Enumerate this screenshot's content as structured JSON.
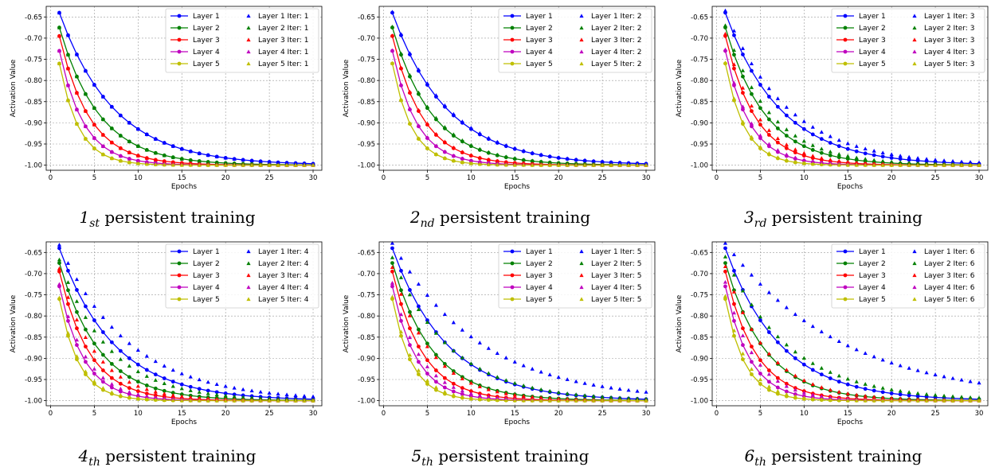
{
  "figure": {
    "layer_names": [
      "Layer 1",
      "Layer 2",
      "Layer 3",
      "Layer 4",
      "Layer 5"
    ],
    "layer_colors": [
      "#0000ff",
      "#008000",
      "#ff0000",
      "#bf00bf",
      "#bfbf00"
    ],
    "xlabel": "Epochs",
    "ylabel": "Activation Value",
    "xticks": [
      0,
      5,
      10,
      15,
      20,
      25,
      30
    ],
    "yticks": [
      -0.65,
      -0.7,
      -0.75,
      -0.8,
      -0.85,
      -0.9,
      -0.95,
      -1.0
    ],
    "xlim": [
      -0.5,
      31
    ],
    "ylim": [
      -1.012,
      -0.625
    ],
    "grid": true,
    "legend_position": "top-right"
  },
  "chart_data": [
    {
      "type": "line",
      "caption": {
        "ordinal": "1",
        "suffix": "st",
        "text": "persistent training"
      },
      "legend_labels": [
        "Layer 1",
        "Layer 2",
        "Layer 3",
        "Layer 4",
        "Layer 5",
        "Layer 1 Iter: 1",
        "Layer 2 Iter: 1",
        "Layer 3 Iter: 1",
        "Layer 4 Iter: 1",
        "Layer 5 Iter: 1"
      ],
      "x": [
        1,
        30
      ],
      "series": [
        {
          "name": "Layer 1",
          "start": -0.64,
          "rate": 0.16
        },
        {
          "name": "Layer 2",
          "start": -0.675,
          "rate": 0.22
        },
        {
          "name": "Layer 3",
          "start": -0.695,
          "rate": 0.29
        },
        {
          "name": "Layer 4",
          "start": -0.73,
          "rate": 0.36
        },
        {
          "name": "Layer 5",
          "start": -0.76,
          "rate": 0.45
        }
      ],
      "iter_series": [
        {
          "name": "Layer 1 Iter: 1",
          "start": -0.64,
          "rate": 0.16
        },
        {
          "name": "Layer 2 Iter: 1",
          "start": -0.675,
          "rate": 0.22
        },
        {
          "name": "Layer 3 Iter: 1",
          "start": -0.695,
          "rate": 0.29
        },
        {
          "name": "Layer 4 Iter: 1",
          "start": -0.73,
          "rate": 0.36
        },
        {
          "name": "Layer 5 Iter: 1",
          "start": -0.76,
          "rate": 0.45
        }
      ]
    },
    {
      "type": "line",
      "caption": {
        "ordinal": "2",
        "suffix": "nd",
        "text": "persistent training"
      },
      "legend_labels": [
        "Layer 1",
        "Layer 2",
        "Layer 3",
        "Layer 4",
        "Layer 5",
        "Layer 1 Iter: 2",
        "Layer 2 Iter: 2",
        "Layer 3 Iter: 2",
        "Layer 4 Iter: 2",
        "Layer 5 Iter: 2"
      ],
      "x": [
        1,
        30
      ],
      "series": [
        {
          "name": "Layer 1",
          "start": -0.64,
          "rate": 0.16
        },
        {
          "name": "Layer 2",
          "start": -0.675,
          "rate": 0.22
        },
        {
          "name": "Layer 3",
          "start": -0.695,
          "rate": 0.29
        },
        {
          "name": "Layer 4",
          "start": -0.73,
          "rate": 0.36
        },
        {
          "name": "Layer 5",
          "start": -0.76,
          "rate": 0.45
        }
      ],
      "iter_series": [
        {
          "name": "Layer 1 Iter: 2",
          "start": -0.638,
          "rate": 0.157
        },
        {
          "name": "Layer 2 Iter: 2",
          "start": -0.673,
          "rate": 0.215
        },
        {
          "name": "Layer 3 Iter: 2",
          "start": -0.694,
          "rate": 0.285
        },
        {
          "name": "Layer 4 Iter: 2",
          "start": -0.729,
          "rate": 0.355
        },
        {
          "name": "Layer 5 Iter: 2",
          "start": -0.759,
          "rate": 0.445
        }
      ]
    },
    {
      "type": "line",
      "caption": {
        "ordinal": "3",
        "suffix": "rd",
        "text": "persistent training"
      },
      "legend_labels": [
        "Layer 1",
        "Layer 2",
        "Layer 3",
        "Layer 4",
        "Layer 5",
        "Layer 1 Iter: 3",
        "Layer 2 Iter: 3",
        "Layer 3 Iter: 3",
        "Layer 4 Iter: 3",
        "Layer 5 Iter: 3"
      ],
      "x": [
        1,
        30
      ],
      "series": [
        {
          "name": "Layer 1",
          "start": -0.64,
          "rate": 0.16
        },
        {
          "name": "Layer 2",
          "start": -0.675,
          "rate": 0.22
        },
        {
          "name": "Layer 3",
          "start": -0.695,
          "rate": 0.29
        },
        {
          "name": "Layer 4",
          "start": -0.73,
          "rate": 0.36
        },
        {
          "name": "Layer 5",
          "start": -0.76,
          "rate": 0.45
        }
      ],
      "iter_series": [
        {
          "name": "Layer 1 Iter: 3",
          "start": -0.635,
          "rate": 0.14
        },
        {
          "name": "Layer 2 Iter: 3",
          "start": -0.67,
          "rate": 0.195
        },
        {
          "name": "Layer 3 Iter: 3",
          "start": -0.69,
          "rate": 0.265
        },
        {
          "name": "Layer 4 Iter: 3",
          "start": -0.727,
          "rate": 0.34
        },
        {
          "name": "Layer 5 Iter: 3",
          "start": -0.758,
          "rate": 0.43
        }
      ]
    },
    {
      "type": "line",
      "caption": {
        "ordinal": "4",
        "suffix": "th",
        "text": "persistent training"
      },
      "legend_labels": [
        "Layer 1",
        "Layer 2",
        "Layer 3",
        "Layer 4",
        "Layer 5",
        "Layer 1 Iter: 4",
        "Layer 2 Iter: 4",
        "Layer 3 Iter: 4",
        "Layer 4 Iter: 4",
        "Layer 5 Iter: 4"
      ],
      "x": [
        1,
        30
      ],
      "series": [
        {
          "name": "Layer 1",
          "start": -0.64,
          "rate": 0.16
        },
        {
          "name": "Layer 2",
          "start": -0.675,
          "rate": 0.22
        },
        {
          "name": "Layer 3",
          "start": -0.695,
          "rate": 0.29
        },
        {
          "name": "Layer 4",
          "start": -0.73,
          "rate": 0.36
        },
        {
          "name": "Layer 5",
          "start": -0.76,
          "rate": 0.45
        }
      ],
      "iter_series": [
        {
          "name": "Layer 1 Iter: 4",
          "start": -0.632,
          "rate": 0.125
        },
        {
          "name": "Layer 2 Iter: 4",
          "start": -0.667,
          "rate": 0.175
        },
        {
          "name": "Layer 3 Iter: 4",
          "start": -0.688,
          "rate": 0.245
        },
        {
          "name": "Layer 4 Iter: 4",
          "start": -0.725,
          "rate": 0.325
        },
        {
          "name": "Layer 5 Iter: 4",
          "start": -0.757,
          "rate": 0.42
        }
      ]
    },
    {
      "type": "line",
      "caption": {
        "ordinal": "5",
        "suffix": "th",
        "text": "persistent training"
      },
      "legend_labels": [
        "Layer 1",
        "Layer 2",
        "Layer 3",
        "Layer 4",
        "Layer 5",
        "Layer 1 Iter: 5",
        "Layer 2 Iter: 5",
        "Layer 3 Iter: 5",
        "Layer 4 Iter: 5",
        "Layer 5 Iter: 5"
      ],
      "x": [
        1,
        30
      ],
      "series": [
        {
          "name": "Layer 1",
          "start": -0.64,
          "rate": 0.16
        },
        {
          "name": "Layer 2",
          "start": -0.675,
          "rate": 0.22
        },
        {
          "name": "Layer 3",
          "start": -0.695,
          "rate": 0.29
        },
        {
          "name": "Layer 4",
          "start": -0.73,
          "rate": 0.36
        },
        {
          "name": "Layer 5",
          "start": -0.76,
          "rate": 0.45
        }
      ],
      "iter_series": [
        {
          "name": "Layer 1 Iter: 5",
          "start": -0.628,
          "rate": 0.1
        },
        {
          "name": "Layer 2 Iter: 5",
          "start": -0.662,
          "rate": 0.15
        },
        {
          "name": "Layer 3 Iter: 5",
          "start": -0.685,
          "rate": 0.225
        },
        {
          "name": "Layer 4 Iter: 5",
          "start": -0.722,
          "rate": 0.31
        },
        {
          "name": "Layer 5 Iter: 5",
          "start": -0.755,
          "rate": 0.41
        }
      ]
    },
    {
      "type": "line",
      "caption": {
        "ordinal": "6",
        "suffix": "th",
        "text": "persistent training"
      },
      "legend_labels": [
        "Layer 1",
        "Layer 2",
        "Layer 3",
        "Layer 4",
        "Layer 5",
        "Layer 1 Iter: 6",
        "Layer 2 Iter: 6",
        "Layer 3 Iter: 6",
        "Layer 4 Iter: 6",
        "Layer 5 Iter: 6"
      ],
      "x": [
        1,
        30
      ],
      "series": [
        {
          "name": "Layer 1",
          "start": -0.64,
          "rate": 0.16
        },
        {
          "name": "Layer 2",
          "start": -0.675,
          "rate": 0.22
        },
        {
          "name": "Layer 3",
          "start": -0.695,
          "rate": 0.29
        },
        {
          "name": "Layer 4",
          "start": -0.73,
          "rate": 0.36
        },
        {
          "name": "Layer 5",
          "start": -0.76,
          "rate": 0.45
        }
      ],
      "iter_series": [
        {
          "name": "Layer 1 Iter: 6",
          "start": -0.628,
          "rate": 0.075
        },
        {
          "name": "Layer 2 Iter: 6",
          "start": -0.66,
          "rate": 0.135
        },
        {
          "name": "Layer 3 Iter: 6",
          "start": -0.683,
          "rate": 0.21
        },
        {
          "name": "Layer 4 Iter: 6",
          "start": -0.72,
          "rate": 0.3
        },
        {
          "name": "Layer 5 Iter: 6",
          "start": -0.753,
          "rate": 0.4
        }
      ]
    }
  ]
}
